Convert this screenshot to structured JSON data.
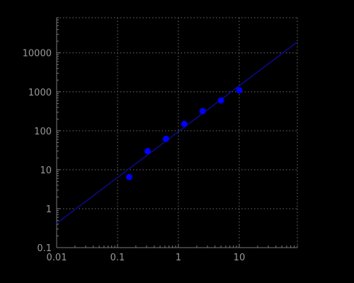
{
  "chart_data": {
    "type": "scatter",
    "title": "",
    "xlabel": "",
    "ylabel": "",
    "x_scale": "log",
    "y_scale": "log",
    "xlim": [
      0.01,
      90
    ],
    "ylim": [
      0.1,
      80000
    ],
    "grid": true,
    "x_ticks": [
      0.01,
      0.1,
      1,
      10
    ],
    "x_tick_labels": [
      "0.01",
      "0.1",
      "1",
      "10"
    ],
    "y_ticks": [
      0.1,
      1,
      10,
      100,
      1000,
      10000
    ],
    "y_tick_labels": [
      "0.1",
      "1",
      "10",
      "100",
      "1000",
      "10000"
    ],
    "series": [
      {
        "type": "scatter",
        "color": "#0000ff",
        "x": [
          0.156,
          0.3125,
          0.625,
          1.25,
          2.5,
          5,
          10
        ],
        "y": [
          6.5,
          30,
          62,
          150,
          320,
          600,
          1100
        ]
      },
      {
        "type": "line",
        "color": "#0b0b8a",
        "x": [
          0.01,
          90
        ],
        "y": [
          0.42,
          19000
        ]
      }
    ],
    "colors": {
      "background": "#000000",
      "axis": "#7a7a7a",
      "grid": "#6e6e6e",
      "tick_text": "#9a9a9a"
    }
  }
}
